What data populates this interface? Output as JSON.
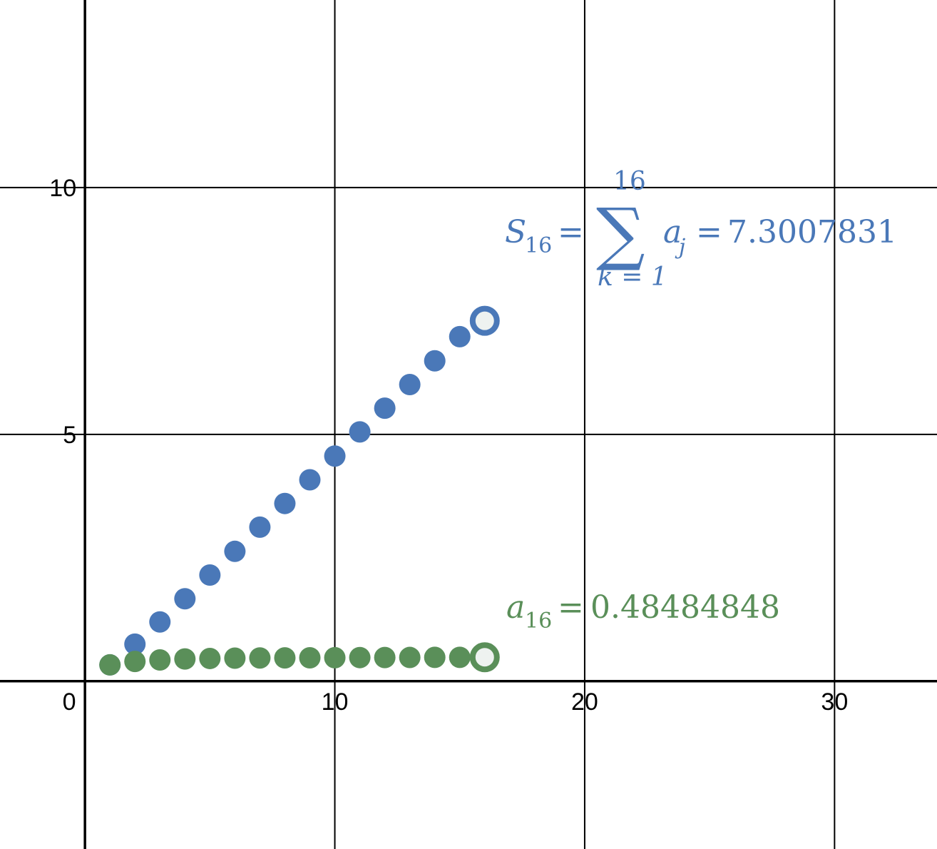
{
  "chart_data": {
    "type": "scatter",
    "xlim": [
      -3.4,
      34.1
    ],
    "ylim": [
      -3.4,
      13.8
    ],
    "grid": true,
    "x_ticks": [
      0,
      10,
      20,
      30
    ],
    "y_ticks": [
      5,
      10
    ],
    "x_tick_labels": [
      "0",
      "10",
      "20",
      "30"
    ],
    "y_tick_labels": [
      "5",
      "10"
    ],
    "series": [
      {
        "color": "#4a78b8",
        "x": [
          1,
          2,
          3,
          4,
          5,
          6,
          7,
          8,
          9,
          10,
          11,
          12,
          13,
          14,
          15,
          16
        ],
        "y": [
          0.33,
          0.75,
          1.2,
          1.67,
          2.15,
          2.63,
          3.12,
          3.6,
          4.08,
          4.56,
          5.05,
          5.53,
          6.01,
          6.49,
          6.98,
          7.3007831
        ],
        "highlight_index": 15
      },
      {
        "color": "#5a8f59",
        "x": [
          1,
          2,
          3,
          4,
          5,
          6,
          7,
          8,
          9,
          10,
          11,
          12,
          13,
          14,
          15,
          16
        ],
        "y": [
          0.33,
          0.4,
          0.43,
          0.45,
          0.46,
          0.467,
          0.47,
          0.472,
          0.474,
          0.476,
          0.478,
          0.479,
          0.48,
          0.482,
          0.483,
          0.48484848
        ],
        "highlight_index": 15
      }
    ],
    "annotations": {
      "sum_label": {
        "S": "S",
        "S_sub": "16",
        "eq1": "=",
        "sigma": "∑",
        "upper": "16",
        "lower": "k = 1",
        "a": "a",
        "a_sub": "j",
        "eq2": "=",
        "value": "7.3007831",
        "color": "#4a78b8"
      },
      "term_label": {
        "a": "a",
        "a_sub": "16",
        "eq": "=",
        "value": "0.48484848",
        "color": "#5a8f59"
      }
    }
  }
}
